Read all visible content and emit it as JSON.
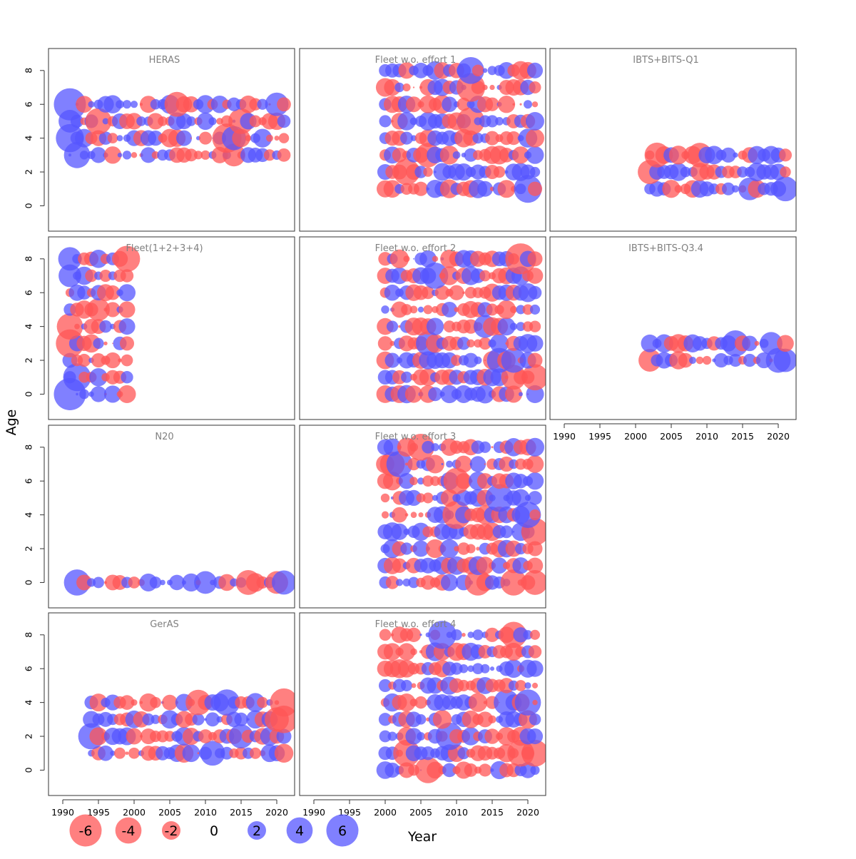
{
  "figure": {
    "ylabel": "Age",
    "xlabel": "Year",
    "x_ticks": [
      "1990",
      "1995",
      "2000",
      "2005",
      "2010",
      "2015",
      "2020"
    ],
    "y_ticks": [
      "0",
      "2",
      "4",
      "6",
      "8"
    ],
    "colors": {
      "negative": "#FF5555",
      "positive": "#5555FF",
      "frame": "#333333",
      "panel_title": "#808080"
    },
    "legend": [
      {
        "label": "-6",
        "value": -6
      },
      {
        "label": "-4",
        "value": -4
      },
      {
        "label": "-2",
        "value": -2
      },
      {
        "label": "0",
        "value": 0
      },
      {
        "label": "2",
        "value": 2
      },
      {
        "label": "4",
        "value": 4
      },
      {
        "label": "6",
        "value": 6
      }
    ]
  },
  "chart_data": {
    "type": "scatter",
    "description_encoding": "bubble: x=year, y=age, size=|residual|, color=sign",
    "xlim": [
      1988,
      2022.5
    ],
    "ylim": [
      -1.5,
      9.3
    ],
    "panels": [
      {
        "id": "heras",
        "title": "HERAS",
        "ages": [
          3,
          4,
          5,
          6
        ],
        "start": 1991,
        "end": 2021,
        "seed": 11,
        "boost": [
          [
            1991,
            6,
            6
          ],
          [
            1991,
            4,
            4.6
          ],
          [
            1992,
            3,
            4
          ],
          [
            1991,
            5,
            3
          ],
          [
            1995,
            5,
            -4
          ],
          [
            2006,
            6,
            -3.6
          ],
          [
            2013,
            4,
            -5
          ],
          [
            2014,
            4,
            3.4
          ],
          [
            2014,
            3,
            -3
          ],
          [
            2015,
            5,
            -3.8
          ],
          [
            2020,
            6,
            3.2
          ]
        ]
      },
      {
        "id": "fleet_w_o_effort_1",
        "title": "Fleet w.o. effort 1",
        "ages": [
          1,
          2,
          3,
          4,
          5,
          6,
          7,
          8
        ],
        "start": 2000,
        "end": 2021,
        "seed": 23,
        "boost": [
          [
            2012,
            8,
            4.2
          ],
          [
            2012,
            7,
            -4.8
          ],
          [
            2012,
            5,
            -4.5
          ],
          [
            2003,
            2,
            -4
          ],
          [
            2020,
            1,
            4.5
          ],
          [
            2006,
            3,
            -3.5
          ]
        ]
      },
      {
        "id": "ibts_bits_q1",
        "title": "IBTS+BITS-Q1",
        "ages": [
          1,
          2,
          3
        ],
        "start": 2002,
        "end": 2021,
        "seed": 31,
        "boost": [
          [
            2003,
            3,
            -3.6
          ],
          [
            2002,
            2,
            -3.4
          ],
          [
            2009,
            3,
            -3.5
          ],
          [
            2021,
            1,
            3.6
          ],
          [
            2016,
            1,
            3
          ]
        ]
      },
      {
        "id": "fleet_1_2_3_4",
        "title": "Fleet(1+2+3+4)",
        "ages": [
          0,
          1,
          2,
          3,
          4,
          5,
          6,
          7,
          8
        ],
        "start": 1991,
        "end": 1999,
        "seed": 41,
        "boost": [
          [
            1991,
            0,
            6
          ],
          [
            1992,
            1,
            4.5
          ],
          [
            1991,
            3,
            -4.6
          ],
          [
            1991,
            4,
            -4
          ],
          [
            1999,
            8,
            -4
          ],
          [
            1991,
            8,
            3.2
          ],
          [
            1991,
            7,
            3
          ],
          [
            1995,
            5,
            -3
          ]
        ]
      },
      {
        "id": "fleet_w_o_effort_2",
        "title": "Fleet w.o. effort 2",
        "ages": [
          0,
          1,
          2,
          3,
          4,
          5,
          6,
          7,
          8
        ],
        "start": 2000,
        "end": 2021,
        "seed": 53,
        "boost": [
          [
            2019,
            8,
            -5.6
          ],
          [
            2021,
            1,
            -4
          ],
          [
            2007,
            7,
            4
          ],
          [
            2016,
            2,
            3.6
          ],
          [
            2018,
            2,
            3.6
          ],
          [
            2006,
            3,
            3.4
          ],
          [
            2014,
            4,
            3
          ],
          [
            2018,
            1,
            -3.6
          ]
        ]
      },
      {
        "id": "ibts_bits_q3_4",
        "title": "IBTS+BITS-Q3.4",
        "ages": [
          2,
          3
        ],
        "start": 2002,
        "end": 2021,
        "seed": 61,
        "boost": [
          [
            2014,
            3,
            4
          ],
          [
            2002,
            2,
            -3
          ],
          [
            2020,
            2,
            3.6
          ],
          [
            2019,
            3,
            3
          ],
          [
            2021,
            2,
            3.2
          ]
        ]
      },
      {
        "id": "n20",
        "title": "N20",
        "ages": [
          0
        ],
        "start": 1992,
        "end": 2021,
        "seed": 71,
        "boost": [
          [
            1992,
            0,
            4
          ],
          [
            2016,
            0,
            -3.6
          ],
          [
            2021,
            0,
            3.4
          ],
          [
            2020,
            0,
            -3
          ],
          [
            2010,
            0,
            3
          ]
        ]
      },
      {
        "id": "fleet_w_o_effort_3",
        "title": "Fleet w.o. effort 3",
        "ages": [
          0,
          1,
          2,
          3,
          4,
          5,
          6,
          7,
          8
        ],
        "start": 2000,
        "end": 2021,
        "seed": 83,
        "boost": [
          [
            2005,
            8,
            -4.2
          ],
          [
            2002,
            7,
            4
          ],
          [
            2001,
            7,
            -3.6
          ],
          [
            2010,
            6,
            -4
          ],
          [
            2010,
            4,
            -4.6
          ],
          [
            2021,
            3,
            -4.4
          ],
          [
            2016,
            5,
            4.5
          ],
          [
            2020,
            4,
            4
          ],
          [
            2018,
            0,
            -4
          ],
          [
            2013,
            0,
            -4
          ],
          [
            2021,
            0,
            -3.6
          ]
        ]
      },
      {
        "id": "gerAS",
        "title": "GerAS",
        "ages": [
          1,
          2,
          3,
          4
        ],
        "start": 1994,
        "end": 2021,
        "seed": 97,
        "boost": [
          [
            2021,
            4,
            -4.6
          ],
          [
            2021,
            3,
            -4.4
          ],
          [
            2013,
            4,
            4
          ],
          [
            1994,
            2,
            4
          ],
          [
            2009,
            4,
            -3.8
          ],
          [
            2011,
            1,
            3.6
          ],
          [
            2015,
            2,
            3.4
          ],
          [
            2020,
            3,
            -3.4
          ]
        ]
      },
      {
        "id": "fleet_w_o_effort_4",
        "title": "Fleet w.o. effort 4",
        "ages": [
          0,
          1,
          2,
          3,
          4,
          5,
          6,
          7,
          8
        ],
        "start": 2000,
        "end": 2021,
        "seed": 109,
        "boost": [
          [
            2008,
            8,
            4.6
          ],
          [
            2018,
            8,
            -4
          ],
          [
            2009,
            2,
            4.4
          ],
          [
            2003,
            1,
            -4.2
          ],
          [
            2006,
            0,
            -4
          ],
          [
            2019,
            1,
            -4.2
          ],
          [
            2020,
            4,
            4
          ],
          [
            2021,
            1,
            -4.2
          ],
          [
            2017,
            4,
            3.8
          ]
        ]
      }
    ]
  }
}
